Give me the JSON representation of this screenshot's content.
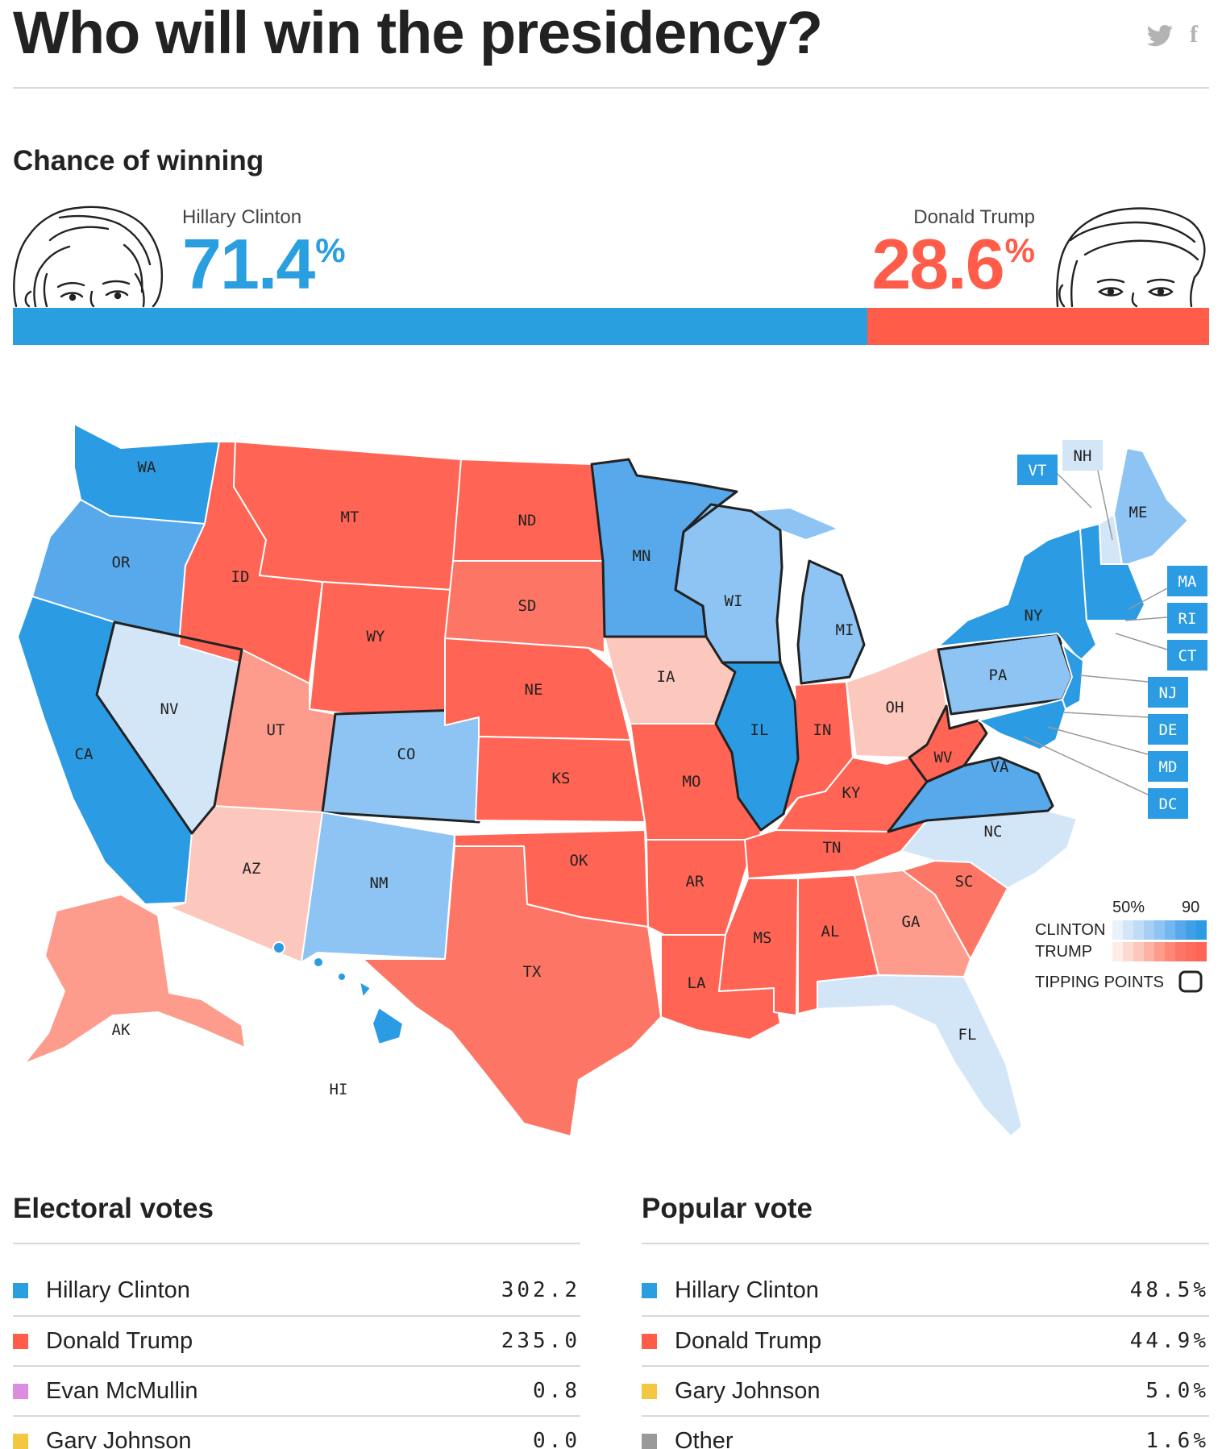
{
  "title": "Who will win the presidency?",
  "share": {
    "twitter_icon": "twitter-icon",
    "facebook_icon": "facebook-icon",
    "facebook_glyph": "f"
  },
  "chance": {
    "heading": "Chance of winning",
    "clinton": {
      "name": "Hillary Clinton",
      "value": "71.4",
      "unit": "%",
      "probability": 0.714,
      "color": "#2a9fdf"
    },
    "trump": {
      "name": "Donald Trump",
      "value": "28.6",
      "unit": "%",
      "probability": 0.286,
      "color": "#ff5c4a"
    }
  },
  "map": {
    "state_labels": [
      "WA",
      "OR",
      "CA",
      "NV",
      "ID",
      "MT",
      "WY",
      "UT",
      "CO",
      "AZ",
      "NM",
      "ND",
      "SD",
      "NE",
      "KS",
      "OK",
      "TX",
      "MN",
      "IA",
      "MO",
      "AR",
      "LA",
      "WI",
      "IL",
      "MI",
      "IN",
      "OH",
      "KY",
      "TN",
      "MS",
      "AL",
      "GA",
      "FL",
      "SC",
      "NC",
      "VA",
      "WV",
      "PA",
      "NY",
      "ME",
      "AK",
      "HI"
    ],
    "callouts": [
      "VT",
      "NH",
      "MA",
      "RI",
      "CT",
      "NJ",
      "DE",
      "MD",
      "DC"
    ],
    "legend": {
      "scale_low": "50%",
      "scale_high": "90",
      "clinton": "CLINTON",
      "trump": "TRUMP",
      "tipping_points": "TIPPING POINTS"
    },
    "colors": {
      "d4": "#2b9be3",
      "d3": "#58a9ec",
      "d2": "#8dc4f3",
      "d1": "#d3e6f8",
      "r1": "#fcc7bc",
      "r2": "#fd9c8c",
      "r3": "#fd7565",
      "r4": "#ff6454"
    }
  },
  "electoral": {
    "heading": "Electoral votes",
    "rows": [
      {
        "name": "Hillary Clinton",
        "value": "302.2",
        "color": "#2a9fdf"
      },
      {
        "name": "Donald Trump",
        "value": "235.0",
        "color": "#ff5c4a"
      },
      {
        "name": "Evan McMullin",
        "value": "0.8",
        "color": "#dc8de0"
      },
      {
        "name": "Gary Johnson",
        "value": "0.0",
        "color": "#f4c742"
      }
    ]
  },
  "popular": {
    "heading": "Popular vote",
    "rows": [
      {
        "name": "Hillary Clinton",
        "value": "48.5%",
        "color": "#2a9fdf"
      },
      {
        "name": "Donald Trump",
        "value": "44.9%",
        "color": "#ff5c4a"
      },
      {
        "name": "Gary Johnson",
        "value": "5.0%",
        "color": "#f4c742"
      },
      {
        "name": "Other",
        "value": "1.6%",
        "color": "#999999"
      }
    ]
  }
}
